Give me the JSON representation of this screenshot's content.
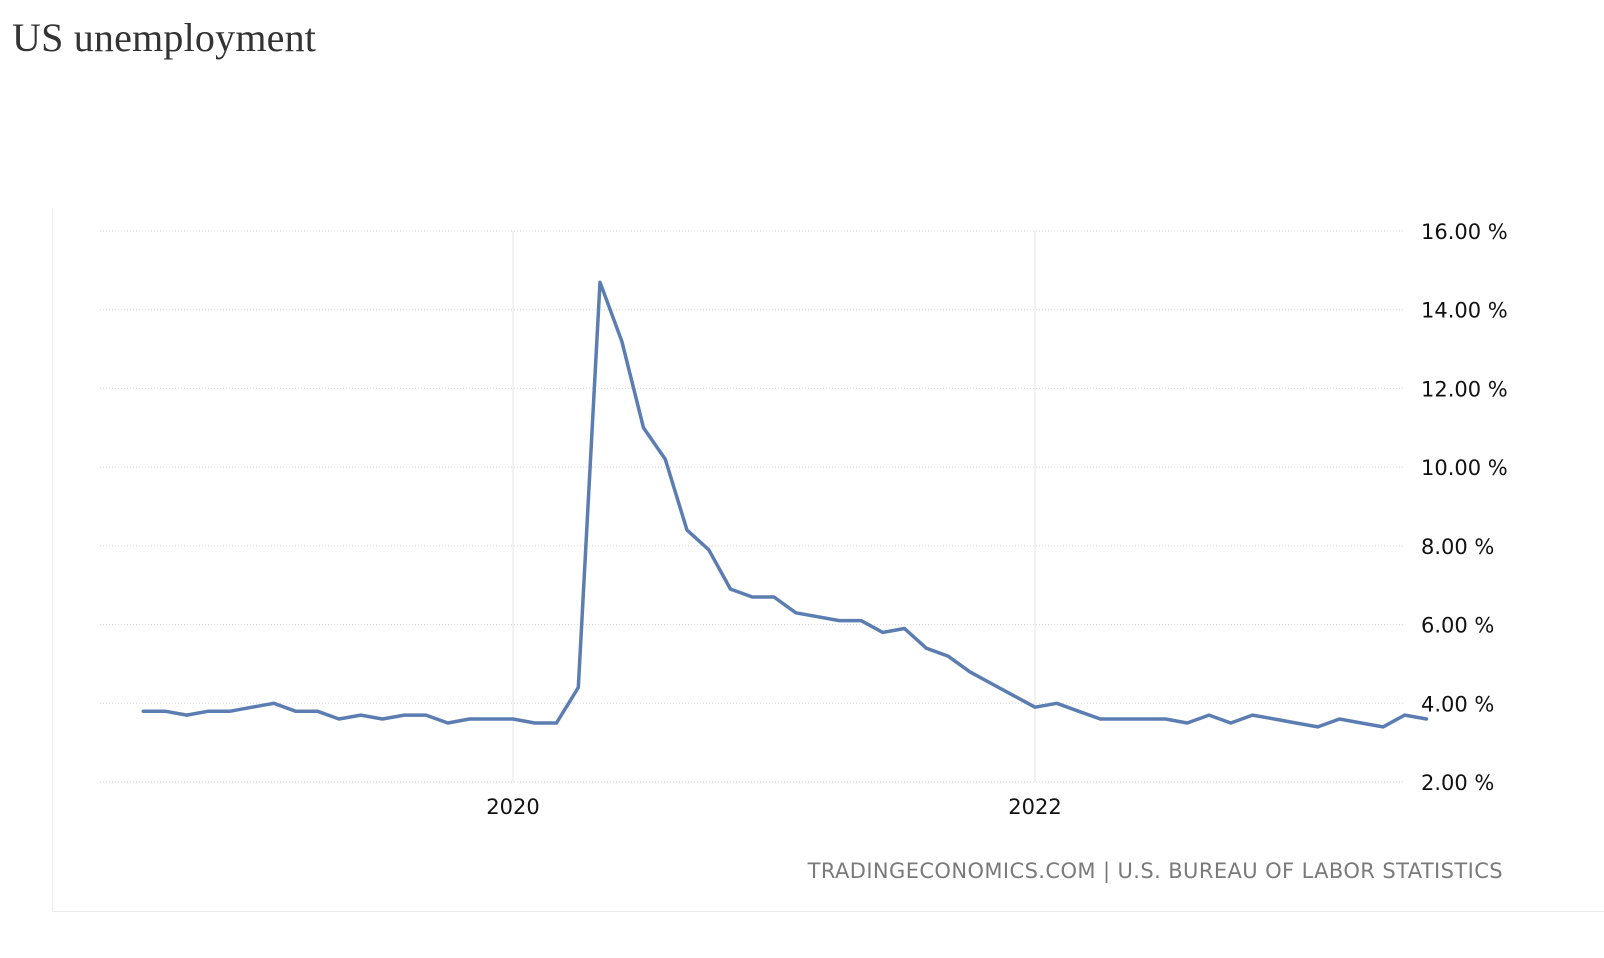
{
  "page": {
    "title": "US unemployment"
  },
  "chart_data": {
    "type": "line",
    "title": "US unemployment",
    "xlabel": "",
    "ylabel": "",
    "x_ticks": [
      "2020",
      "2022"
    ],
    "y_ticks": [
      "2.00 %",
      "4.00 %",
      "6.00 %",
      "8.00 %",
      "10.00 %",
      "12.00 %",
      "14.00 %",
      "16.00 %"
    ],
    "ylim": [
      2,
      16
    ],
    "grid": true,
    "legend": "none",
    "line_color": "#5b7db1",
    "source": "TRADINGECONOMICS.COM | U.S. BUREAU OF LABOR STATISTICS",
    "series": [
      {
        "x": [
          "2018-08",
          "2018-09",
          "2018-10",
          "2018-11",
          "2018-12",
          "2019-01",
          "2019-02",
          "2019-03",
          "2019-04",
          "2019-05",
          "2019-06",
          "2019-07",
          "2019-08",
          "2019-09",
          "2019-10",
          "2019-11",
          "2019-12",
          "2020-01",
          "2020-02",
          "2020-03",
          "2020-04",
          "2020-05",
          "2020-06",
          "2020-07",
          "2020-08",
          "2020-09",
          "2020-10",
          "2020-11",
          "2020-12",
          "2021-01",
          "2021-02",
          "2021-03",
          "2021-04",
          "2021-05",
          "2021-06",
          "2021-07",
          "2021-08",
          "2021-09",
          "2021-10",
          "2021-11",
          "2021-12",
          "2022-01",
          "2022-02",
          "2022-03",
          "2022-04",
          "2022-05",
          "2022-06",
          "2022-07",
          "2022-08",
          "2022-09",
          "2022-10",
          "2022-11",
          "2022-12",
          "2023-01",
          "2023-02",
          "2023-03",
          "2023-04",
          "2023-05",
          "2023-06",
          "2023-07"
        ],
        "values": [
          3.8,
          3.8,
          3.7,
          3.8,
          3.8,
          3.9,
          4.0,
          3.8,
          3.8,
          3.6,
          3.7,
          3.6,
          3.7,
          3.7,
          3.5,
          3.6,
          3.6,
          3.6,
          3.5,
          3.5,
          4.4,
          14.7,
          13.2,
          11.0,
          10.2,
          8.4,
          7.9,
          6.9,
          6.7,
          6.7,
          6.3,
          6.2,
          6.1,
          6.1,
          5.8,
          5.9,
          5.4,
          5.2,
          4.8,
          4.5,
          4.2,
          3.9,
          4.0,
          3.8,
          3.6,
          3.6,
          3.6,
          3.6,
          3.5,
          3.7,
          3.5,
          3.7,
          3.6,
          3.5,
          3.4,
          3.6,
          3.5,
          3.4,
          3.7,
          3.6
        ]
      }
    ]
  }
}
